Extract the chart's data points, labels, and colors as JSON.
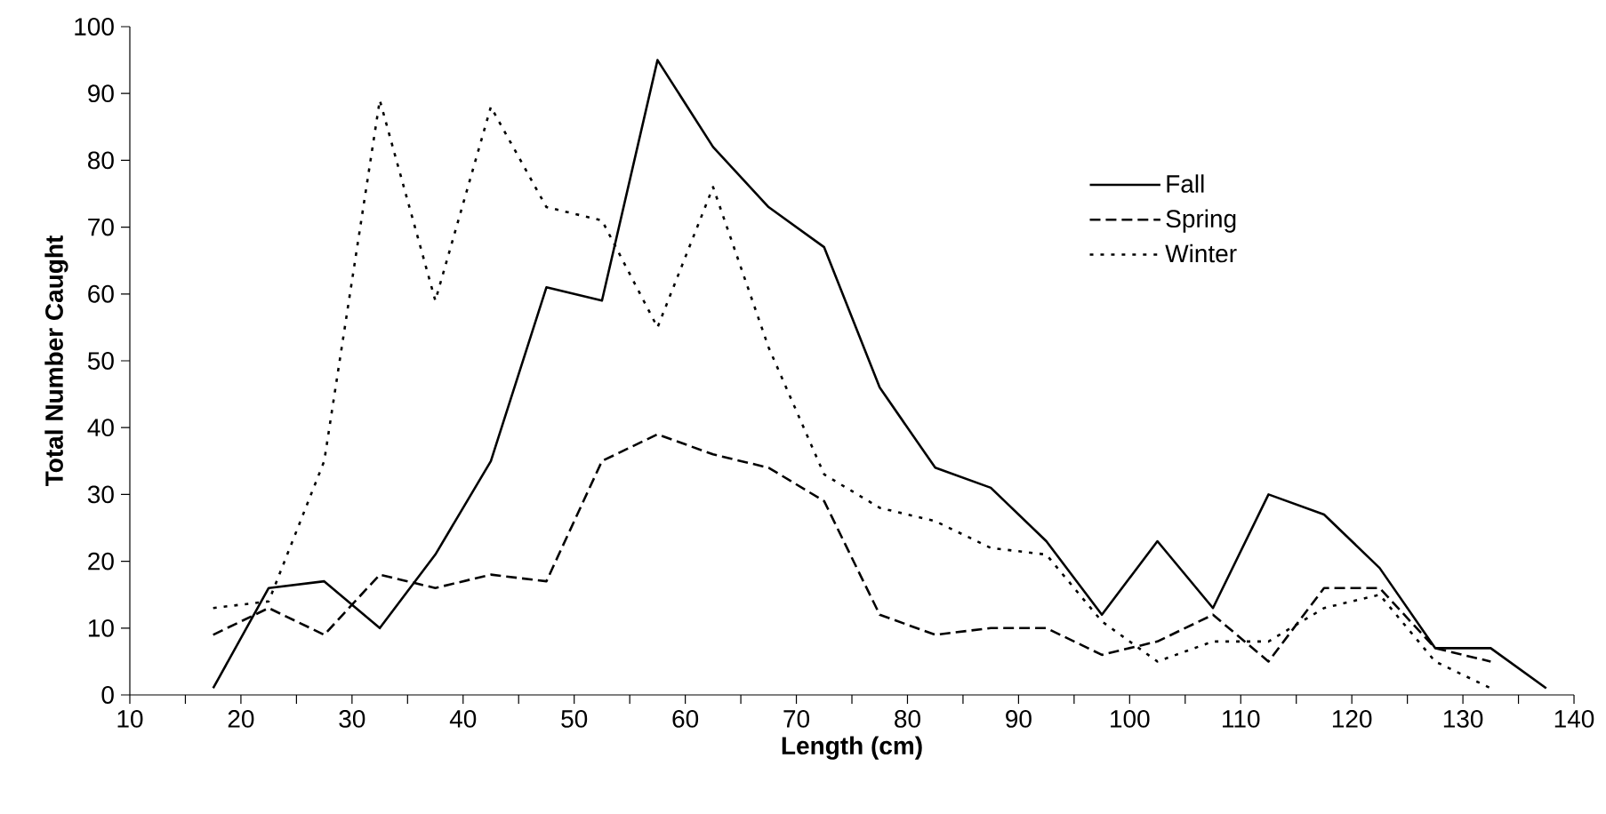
{
  "chart_data": {
    "type": "line",
    "xlabel": "Length (cm)",
    "ylabel": "Total Number Caught",
    "x": [
      17.5,
      22.5,
      27.5,
      32.5,
      37.5,
      42.5,
      47.5,
      52.5,
      57.5,
      62.5,
      67.5,
      72.5,
      77.5,
      82.5,
      87.5,
      92.5,
      97.5,
      102.5,
      107.5,
      112.5,
      117.5,
      122.5,
      127.5,
      132.5,
      137.5
    ],
    "series": [
      {
        "name": "Fall",
        "color": "#000000",
        "line_style": "solid",
        "values": [
          1,
          16,
          17,
          10,
          21,
          35,
          61,
          59,
          95,
          82,
          73,
          67,
          46,
          34,
          31,
          23,
          12,
          23,
          13,
          30,
          27,
          19,
          7,
          7,
          1
        ]
      },
      {
        "name": "Spring",
        "color": "#000000",
        "line_style": "dashed",
        "values": [
          9,
          13,
          9,
          18,
          16,
          18,
          17,
          35,
          39,
          36,
          34,
          29,
          12,
          9,
          10,
          10,
          6,
          8,
          12,
          5,
          16,
          16,
          7,
          5,
          null
        ]
      },
      {
        "name": "Winter",
        "color": "#000000",
        "line_style": "dotted",
        "values": [
          13,
          14,
          35,
          89,
          59,
          88,
          73,
          71,
          55,
          76,
          52,
          33,
          28,
          26,
          22,
          21,
          11,
          5,
          8,
          8,
          13,
          15,
          5,
          1,
          null
        ]
      }
    ],
    "xlim": [
      10,
      140
    ],
    "xticks": [
      10,
      {
        "value": 15,
        "label": null
      },
      20,
      {
        "value": 25,
        "label": null
      },
      30,
      {
        "value": 35,
        "label": null
      },
      40,
      {
        "value": 45,
        "label": null
      },
      50,
      {
        "value": 55,
        "label": null
      },
      60,
      {
        "value": 65,
        "label": null
      },
      70,
      {
        "value": 75,
        "label": null
      },
      80,
      {
        "value": 85,
        "label": null
      },
      90,
      {
        "value": 95,
        "label": null
      },
      100,
      {
        "value": 105,
        "label": null
      },
      110,
      {
        "value": 115,
        "label": null
      },
      120,
      {
        "value": 125,
        "label": null
      },
      130,
      {
        "value": 135,
        "label": null
      },
      140
    ],
    "ylim": [
      0,
      100
    ],
    "yticks": [
      0,
      10,
      20,
      30,
      40,
      50,
      60,
      70,
      80,
      90,
      100
    ],
    "grid": false,
    "legend": "top right"
  }
}
